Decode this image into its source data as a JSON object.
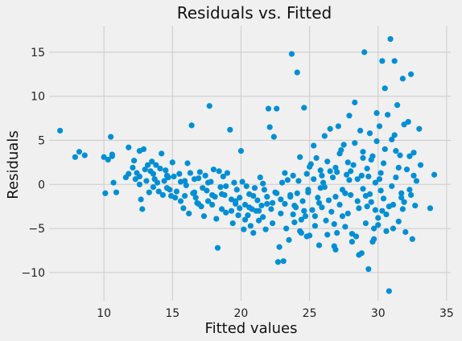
{
  "chart_data": {
    "type": "scatter",
    "title": "Residuals vs. Fitted",
    "xlabel": "Fitted values",
    "ylabel": "Residuals",
    "xlim": [
      6.0,
      35.3
    ],
    "ylim": [
      -13.2,
      18.0
    ],
    "xticks": [
      10,
      15,
      20,
      25,
      30,
      35
    ],
    "yticks": [
      -10,
      -5,
      0,
      5,
      10,
      15
    ],
    "grid": true,
    "point_color": "#008fd5",
    "background_color": "#f0f0f0",
    "points": [
      [
        6.8,
        6.1
      ],
      [
        7.9,
        3.1
      ],
      [
        8.2,
        3.7
      ],
      [
        8.6,
        3.3
      ],
      [
        10.0,
        3.1
      ],
      [
        10.1,
        -1.0
      ],
      [
        10.3,
        2.8
      ],
      [
        10.5,
        5.4
      ],
      [
        10.6,
        3.4
      ],
      [
        10.7,
        0.2
      ],
      [
        10.9,
        -0.9
      ],
      [
        10.6,
        3.2
      ],
      [
        11.8,
        4.2
      ],
      [
        11.8,
        1.2
      ],
      [
        12.1,
        1.9
      ],
      [
        12.2,
        2.7
      ],
      [
        12.3,
        0.6
      ],
      [
        12.4,
        1.3
      ],
      [
        12.6,
        0.0
      ],
      [
        12.6,
        3.8
      ],
      [
        12.7,
        -1.7
      ],
      [
        12.8,
        -2.8
      ],
      [
        12.9,
        4.0
      ],
      [
        13.0,
        1.7
      ],
      [
        13.1,
        0.4
      ],
      [
        13.2,
        2.2
      ],
      [
        13.3,
        -0.9
      ],
      [
        13.4,
        1.5
      ],
      [
        13.5,
        2.6
      ],
      [
        13.6,
        -0.3
      ],
      [
        13.7,
        0.6
      ],
      [
        13.8,
        2.2
      ],
      [
        13.9,
        0.2
      ],
      [
        14.0,
        -0.8
      ],
      [
        14.1,
        1.8
      ],
      [
        14.2,
        3.5
      ],
      [
        14.3,
        -1.2
      ],
      [
        14.4,
        0.4
      ],
      [
        14.5,
        1.6
      ],
      [
        14.6,
        -0.4
      ],
      [
        14.7,
        0.8
      ],
      [
        14.8,
        -0.6
      ],
      [
        14.9,
        -1.3
      ],
      [
        15.0,
        2.5
      ],
      [
        15.1,
        0.9
      ],
      [
        15.2,
        -1.5
      ],
      [
        15.3,
        -0.8
      ],
      [
        15.5,
        1.2
      ],
      [
        15.6,
        -1.9
      ],
      [
        15.8,
        -2.7
      ],
      [
        15.9,
        0.4
      ],
      [
        16.0,
        -0.1
      ],
      [
        16.1,
        2.4
      ],
      [
        16.2,
        -3.3
      ],
      [
        16.3,
        1.3
      ],
      [
        16.4,
        6.7
      ],
      [
        16.5,
        -1.0
      ],
      [
        16.6,
        0.6
      ],
      [
        16.7,
        -1.5
      ],
      [
        16.8,
        -2.1
      ],
      [
        16.9,
        0.7
      ],
      [
        17.0,
        1.4
      ],
      [
        17.1,
        -2.5
      ],
      [
        17.2,
        -0.4
      ],
      [
        17.3,
        -3.6
      ],
      [
        17.4,
        1.0
      ],
      [
        17.5,
        -0.7
      ],
      [
        17.6,
        -1.9
      ],
      [
        17.7,
        8.9
      ],
      [
        17.8,
        0.3
      ],
      [
        17.9,
        -2.3
      ],
      [
        18.0,
        1.7
      ],
      [
        18.1,
        -1.4
      ],
      [
        18.2,
        -3.9
      ],
      [
        18.3,
        -7.2
      ],
      [
        18.4,
        1.5
      ],
      [
        18.5,
        -0.3
      ],
      [
        18.6,
        -2.8
      ],
      [
        18.7,
        0.9
      ],
      [
        18.8,
        -1.2
      ],
      [
        18.9,
        -3.2
      ],
      [
        19.0,
        1.3
      ],
      [
        19.2,
        6.2
      ],
      [
        19.3,
        -1.7
      ],
      [
        19.4,
        -4.4
      ],
      [
        19.5,
        0.2
      ],
      [
        19.6,
        -2.2
      ],
      [
        19.7,
        -0.6
      ],
      [
        19.8,
        -3.5
      ],
      [
        19.9,
        -1.5
      ],
      [
        20.0,
        3.8
      ],
      [
        20.1,
        0.3
      ],
      [
        20.2,
        -5.1
      ],
      [
        20.3,
        -2.3
      ],
      [
        20.4,
        -0.2
      ],
      [
        20.5,
        -3.5
      ],
      [
        20.6,
        -1.1
      ],
      [
        20.7,
        -4.7
      ],
      [
        20.8,
        -2.8
      ],
      [
        20.9,
        -5.5
      ],
      [
        21.0,
        -0.4
      ],
      [
        21.1,
        -3.0
      ],
      [
        21.2,
        -1.8
      ],
      [
        21.3,
        -4.1
      ],
      [
        21.4,
        0.8
      ],
      [
        21.5,
        -2.4
      ],
      [
        21.6,
        -3.7
      ],
      [
        21.7,
        -0.6
      ],
      [
        21.8,
        -5.1
      ],
      [
        21.9,
        -1.4
      ],
      [
        22.0,
        8.6
      ],
      [
        22.1,
        6.5
      ],
      [
        22.2,
        -2.8
      ],
      [
        22.3,
        -4.4
      ],
      [
        22.4,
        5.4
      ],
      [
        22.5,
        -0.9
      ],
      [
        22.6,
        8.6
      ],
      [
        22.7,
        -8.8
      ],
      [
        22.8,
        -7.1
      ],
      [
        22.9,
        -3.3
      ],
      [
        23.0,
        0.2
      ],
      [
        23.1,
        -8.7
      ],
      [
        23.2,
        -2.2
      ],
      [
        23.3,
        -5.0
      ],
      [
        23.4,
        0.5
      ],
      [
        23.5,
        -6.3
      ],
      [
        23.6,
        -1.4
      ],
      [
        23.7,
        14.8
      ],
      [
        23.8,
        1.0
      ],
      [
        23.9,
        -4.3
      ],
      [
        24.0,
        -2.6
      ],
      [
        24.1,
        12.7
      ],
      [
        24.2,
        0.4
      ],
      [
        24.3,
        3.1
      ],
      [
        24.4,
        -5.5
      ],
      [
        24.5,
        -1.9
      ],
      [
        24.6,
        8.7
      ],
      [
        24.7,
        -3.6
      ],
      [
        24.8,
        1.2
      ],
      [
        24.9,
        -0.9
      ],
      [
        25.0,
        -5.8
      ],
      [
        25.1,
        2.3
      ],
      [
        25.2,
        -2.9
      ],
      [
        25.3,
        0.6
      ],
      [
        25.4,
        -4.7
      ],
      [
        25.5,
        3.0
      ],
      [
        25.6,
        -1.5
      ],
      [
        25.7,
        -6.9
      ],
      [
        25.8,
        1.6
      ],
      [
        25.9,
        -2.6
      ],
      [
        26.0,
        0.2
      ],
      [
        26.1,
        5.5
      ],
      [
        26.2,
        -4.1
      ],
      [
        26.3,
        2.6
      ],
      [
        26.4,
        -1.8
      ],
      [
        26.5,
        6.3
      ],
      [
        26.6,
        -3.1
      ],
      [
        26.7,
        0.8
      ],
      [
        26.8,
        -7.0
      ],
      [
        26.9,
        1.9
      ],
      [
        27.0,
        -5.5
      ],
      [
        27.1,
        6.6
      ],
      [
        27.2,
        -2.3
      ],
      [
        27.3,
        3.9
      ],
      [
        27.4,
        -0.6
      ],
      [
        27.5,
        4.5
      ],
      [
        27.6,
        -4.8
      ],
      [
        27.7,
        1.1
      ],
      [
        27.8,
        -3.3
      ],
      [
        27.9,
        7.8
      ],
      [
        28.0,
        -1.2
      ],
      [
        28.1,
        -6.5
      ],
      [
        28.2,
        2.2
      ],
      [
        28.3,
        9.3
      ],
      [
        28.4,
        -5.9
      ],
      [
        28.5,
        0.6
      ],
      [
        28.6,
        -2.7
      ],
      [
        28.7,
        6.1
      ],
      [
        28.8,
        -7.8
      ],
      [
        28.9,
        3.7
      ],
      [
        29.0,
        15.0
      ],
      [
        29.1,
        -4.4
      ],
      [
        29.2,
        1.8
      ],
      [
        29.3,
        -9.6
      ],
      [
        29.4,
        5.8
      ],
      [
        29.5,
        -2.0
      ],
      [
        29.6,
        3.2
      ],
      [
        29.7,
        -6.2
      ],
      [
        29.8,
        0.2
      ],
      [
        29.9,
        4.9
      ],
      [
        30.0,
        -3.8
      ],
      [
        30.1,
        6.6
      ],
      [
        30.2,
        -0.7
      ],
      [
        30.3,
        14.0
      ],
      [
        30.4,
        2.4
      ],
      [
        30.5,
        10.9
      ],
      [
        30.6,
        -5.3
      ],
      [
        30.7,
        7.9
      ],
      [
        30.8,
        -12.1
      ],
      [
        30.9,
        16.5
      ],
      [
        31.0,
        5.1
      ],
      [
        31.1,
        -2.3
      ],
      [
        31.2,
        14.0
      ],
      [
        31.3,
        0.8
      ],
      [
        31.4,
        9.0
      ],
      [
        31.5,
        -4.2
      ],
      [
        31.6,
        3.3
      ],
      [
        31.7,
        -1.0
      ],
      [
        31.8,
        12.0
      ],
      [
        31.9,
        6.8
      ],
      [
        32.0,
        -5.4
      ],
      [
        32.1,
        1.7
      ],
      [
        32.2,
        7.1
      ],
      [
        32.3,
        -0.6
      ],
      [
        32.4,
        12.5
      ],
      [
        32.5,
        -6.2
      ],
      [
        32.6,
        3.6
      ],
      [
        32.7,
        -2.4
      ],
      [
        32.8,
        0.4
      ],
      [
        33.0,
        6.3
      ],
      [
        33.1,
        2.2
      ],
      [
        33.8,
        -2.7
      ],
      [
        34.1,
        1.1
      ],
      [
        25.3,
        4.4
      ],
      [
        26.1,
        -0.3
      ],
      [
        27.0,
        1.4
      ],
      [
        28.5,
        -1.9
      ],
      [
        29.3,
        0.9
      ],
      [
        29.8,
        -2.9
      ],
      [
        30.2,
        1.3
      ],
      [
        30.6,
        -3.4
      ],
      [
        31.0,
        -0.2
      ],
      [
        31.5,
        1.9
      ],
      [
        25.0,
        2.0
      ],
      [
        24.6,
        -3.0
      ],
      [
        23.6,
        -1.2
      ],
      [
        22.6,
        -1.0
      ],
      [
        21.6,
        0.1
      ],
      [
        20.6,
        -2.6
      ],
      [
        19.6,
        -1.9
      ],
      [
        18.6,
        -1.1
      ],
      [
        17.6,
        0.2
      ],
      [
        16.6,
        -0.9
      ],
      [
        15.6,
        0.3
      ],
      [
        14.6,
        1.0
      ],
      [
        13.6,
        1.2
      ],
      [
        12.6,
        0.9
      ],
      [
        11.6,
        0.8
      ],
      [
        26.8,
        -4.5
      ],
      [
        27.8,
        2.5
      ],
      [
        28.9,
        -0.5
      ],
      [
        29.5,
        2.8
      ],
      [
        30.4,
        -1.6
      ],
      [
        31.3,
        3.8
      ],
      [
        31.9,
        -2.0
      ],
      [
        32.4,
        -1.2
      ],
      [
        25.7,
        -2.1
      ],
      [
        26.5,
        1.5
      ],
      [
        27.4,
        -3.6
      ],
      [
        28.3,
        4.7
      ],
      [
        29.1,
        -1.3
      ],
      [
        30.0,
        -4.6
      ],
      [
        31.1,
        -5.0
      ],
      [
        29.9,
        8.1
      ],
      [
        28.9,
        3.0
      ],
      [
        27.9,
        0.5
      ],
      [
        26.9,
        -1.4
      ],
      [
        25.9,
        1.0
      ],
      [
        24.9,
        -0.6
      ],
      [
        23.9,
        -2.4
      ],
      [
        22.9,
        -1.7
      ],
      [
        21.9,
        -2.2
      ],
      [
        20.9,
        -1.3
      ],
      [
        19.9,
        -2.7
      ],
      [
        18.9,
        -0.2
      ],
      [
        17.9,
        -1.2
      ],
      [
        16.9,
        -2.2
      ],
      [
        15.9,
        -1.3
      ],
      [
        24.4,
        -4.0
      ],
      [
        26.3,
        -5.7
      ],
      [
        28.1,
        -5.6
      ],
      [
        29.6,
        -6.5
      ],
      [
        30.8,
        -2.5
      ],
      [
        30.1,
        0.6
      ],
      [
        31.7,
        -1.5
      ],
      [
        32.6,
        1.0
      ],
      [
        25.8,
        -0.4
      ],
      [
        27.6,
        -1.0
      ],
      [
        28.8,
        1.0
      ],
      [
        29.4,
        -1.1
      ],
      [
        30.5,
        4.0
      ],
      [
        31.2,
        5.6
      ],
      [
        23.2,
        1.3
      ],
      [
        22.3,
        -2.1
      ],
      [
        21.3,
        -3.0
      ],
      [
        20.3,
        -4.0
      ],
      [
        19.3,
        -3.0
      ],
      [
        26.9,
        -7.4
      ],
      [
        28.6,
        -8.0
      ],
      [
        29.7,
        -5.0
      ],
      [
        30.3,
        -3.0
      ],
      [
        31.8,
        -2.8
      ],
      [
        32.3,
        3.2
      ],
      [
        27.2,
        3.5
      ],
      [
        28.0,
        1.5
      ],
      [
        29.2,
        -2.5
      ],
      [
        24.3,
        -5.3
      ],
      [
        25.4,
        -3.6
      ],
      [
        24.1,
        -1.0
      ],
      [
        23.8,
        -3.4
      ],
      [
        24.8,
        -5.9
      ]
    ]
  }
}
